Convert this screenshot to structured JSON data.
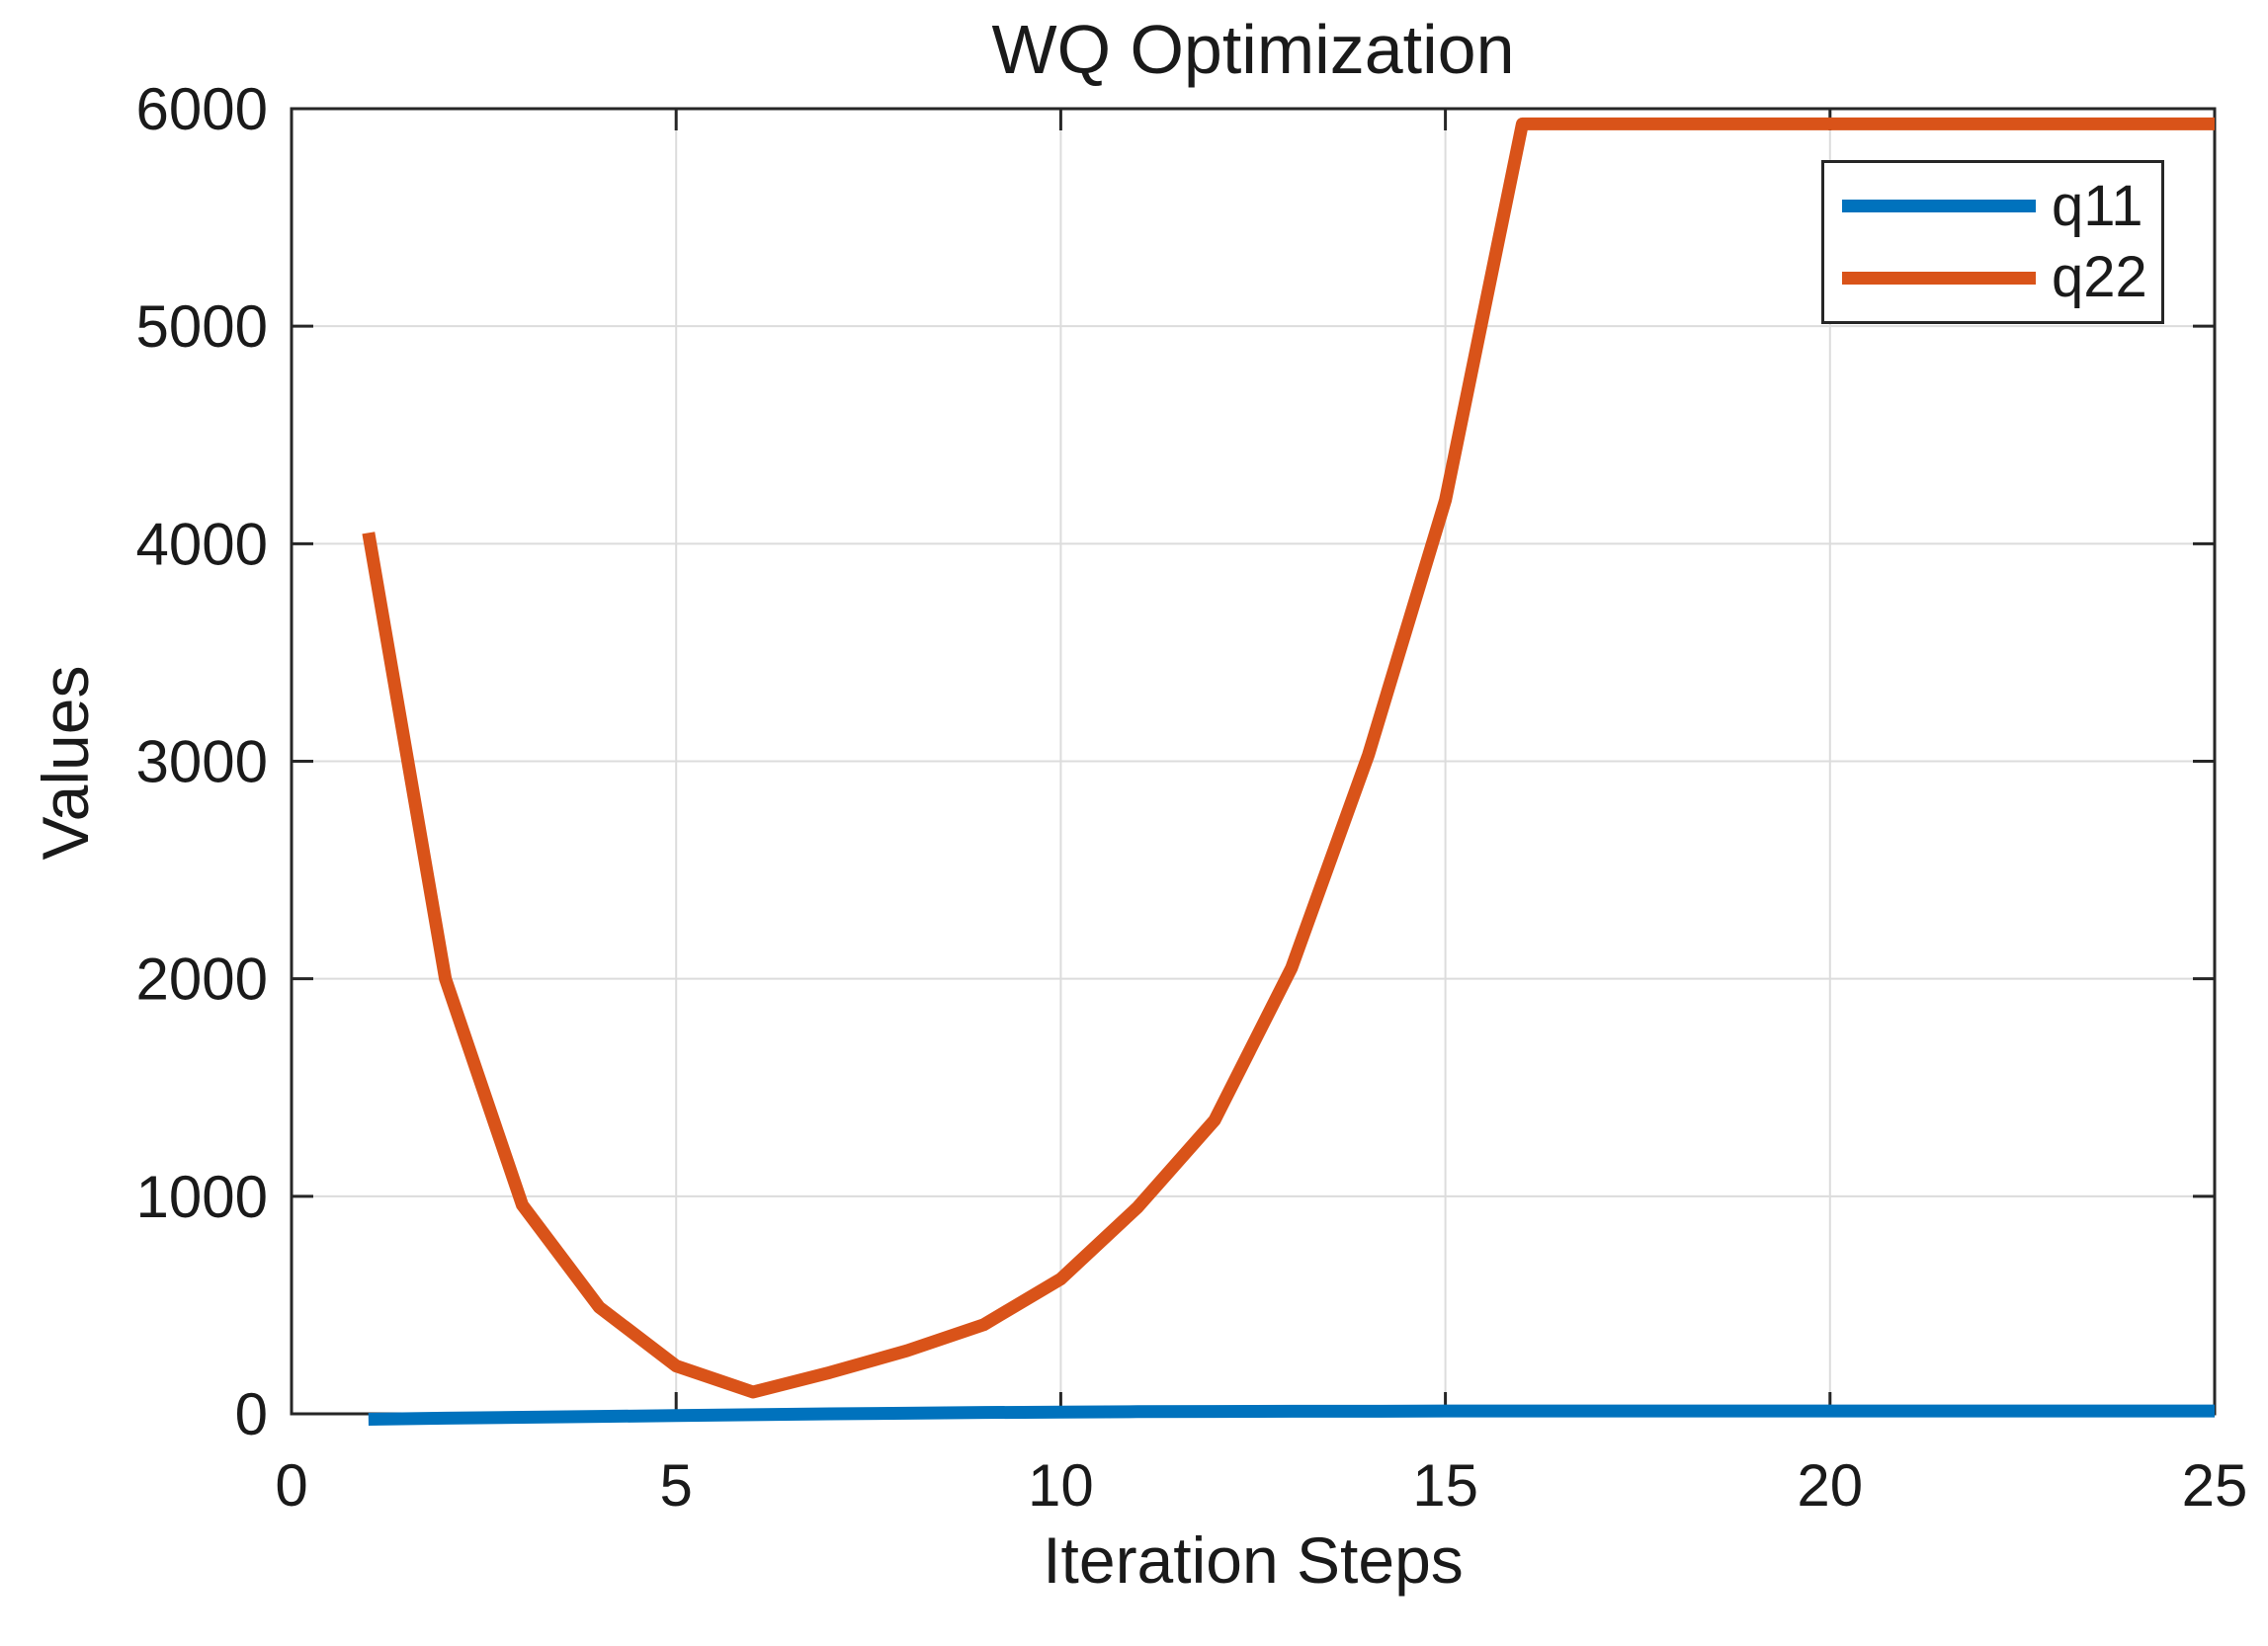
{
  "chart_data": {
    "type": "line",
    "title": "WQ Optimization",
    "xlabel": "Iteration Steps",
    "ylabel": "Values",
    "xlim": [
      0,
      25
    ],
    "ylim": [
      0,
      6000
    ],
    "xticks": [
      0,
      5,
      10,
      15,
      20,
      25
    ],
    "yticks": [
      0,
      1000,
      2000,
      3000,
      4000,
      5000,
      6000
    ],
    "grid": true,
    "legend_position": "top-right",
    "x": [
      1,
      2,
      3,
      4,
      5,
      6,
      7,
      8,
      9,
      10,
      11,
      12,
      13,
      14,
      15,
      16,
      17,
      18,
      19,
      20,
      21,
      22,
      23,
      24,
      25
    ],
    "series": [
      {
        "name": "q11",
        "color": "#0072BD",
        "values": [
          -25,
          -20,
          -16,
          -12,
          -8,
          -4,
          0,
          3,
          6,
          8,
          10,
          11,
          12,
          12,
          13,
          13,
          13,
          13,
          13,
          13,
          13,
          13,
          13,
          13,
          13
        ]
      },
      {
        "name": "q22",
        "color": "#D95319",
        "values": [
          4050,
          2000,
          960,
          490,
          220,
          100,
          190,
          290,
          410,
          620,
          950,
          1350,
          2050,
          3030,
          4200,
          5930,
          5930,
          5930,
          5930,
          5930,
          5930,
          5930,
          5930,
          5930,
          5930
        ]
      }
    ],
    "colors": {
      "grid": "#dcdcdc",
      "axis": "#262626",
      "text": "#1a1a1a",
      "background": "#ffffff"
    }
  }
}
